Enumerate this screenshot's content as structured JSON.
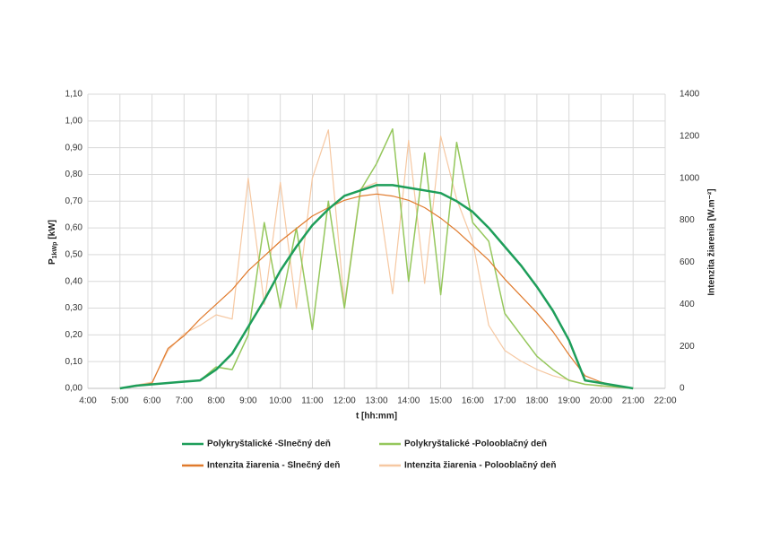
{
  "chart_data": {
    "type": "line",
    "xlabel": "t [hh:mm]",
    "ylabel_main": "P",
    "ylabel_sub": "1kWp",
    "ylabel_unit": "[kW]",
    "y2label": "Intenzita žiarenia [W.m⁻²]",
    "grid": true,
    "xlim": [
      4,
      22
    ],
    "xticks": [
      {
        "value": 4,
        "label": "4:00"
      },
      {
        "value": 5,
        "label": "5:00"
      },
      {
        "value": 6,
        "label": "6:00"
      },
      {
        "value": 7,
        "label": "7:00"
      },
      {
        "value": 8,
        "label": "8:00"
      },
      {
        "value": 9,
        "label": "9:00"
      },
      {
        "value": 10,
        "label": "10:00"
      },
      {
        "value": 11,
        "label": "11:00"
      },
      {
        "value": 12,
        "label": "12:00"
      },
      {
        "value": 13,
        "label": "13:00"
      },
      {
        "value": 14,
        "label": "14:00"
      },
      {
        "value": 15,
        "label": "15:00"
      },
      {
        "value": 16,
        "label": "16:00"
      },
      {
        "value": 17,
        "label": "17:00"
      },
      {
        "value": 18,
        "label": "18:00"
      },
      {
        "value": 19,
        "label": "19:00"
      },
      {
        "value": 20,
        "label": "20:00"
      },
      {
        "value": 21,
        "label": "21:00"
      },
      {
        "value": 22,
        "label": "22:00"
      }
    ],
    "ylim": [
      0,
      1.1
    ],
    "yticks": [
      {
        "value": 0,
        "label": "0,00"
      },
      {
        "value": 0.1,
        "label": "0,10"
      },
      {
        "value": 0.2,
        "label": "0,20"
      },
      {
        "value": 0.3,
        "label": "0,30"
      },
      {
        "value": 0.4,
        "label": "0,40"
      },
      {
        "value": 0.5,
        "label": "0,50"
      },
      {
        "value": 0.6,
        "label": "0,60"
      },
      {
        "value": 0.7,
        "label": "0,70"
      },
      {
        "value": 0.8,
        "label": "0,80"
      },
      {
        "value": 0.9,
        "label": "0,90"
      },
      {
        "value": 1.0,
        "label": "1,00"
      },
      {
        "value": 1.1,
        "label": "1,10"
      }
    ],
    "y2lim": [
      0,
      1400
    ],
    "y2ticks": [
      0,
      200,
      400,
      600,
      800,
      1000,
      1200,
      1400
    ],
    "x": [
      4,
      4.5,
      5,
      5.5,
      6,
      6.5,
      7,
      7.5,
      8,
      8.5,
      9,
      9.5,
      10,
      10.5,
      11,
      11.5,
      12,
      12.5,
      13,
      13.5,
      14,
      14.5,
      15,
      15.5,
      16,
      16.5,
      17,
      17.5,
      18,
      18.5,
      19,
      19.5,
      20,
      20.5,
      21,
      21.5,
      22
    ],
    "series": [
      {
        "name": "Polykryštalické -Slnečný deň",
        "color": "#1e9e5a",
        "width": 2.5,
        "values": [
          null,
          null,
          0,
          0.01,
          0.015,
          0.02,
          0.025,
          0.03,
          0.07,
          0.13,
          0.23,
          0.33,
          0.44,
          0.53,
          0.61,
          0.67,
          0.72,
          0.74,
          0.76,
          0.76,
          0.75,
          0.74,
          0.73,
          0.7,
          0.66,
          0.6,
          0.53,
          0.46,
          0.38,
          0.29,
          0.18,
          0.03,
          0.02,
          0.01,
          0,
          null,
          null
        ]
      },
      {
        "name": "Polykryštalické -Polooblačný deň",
        "color": "#95c75c",
        "width": 1.5,
        "values": [
          null,
          null,
          0,
          0.01,
          0.015,
          0.02,
          0.025,
          0.03,
          0.08,
          0.07,
          0.2,
          0.62,
          0.3,
          0.6,
          0.22,
          0.7,
          0.3,
          0.74,
          0.84,
          0.97,
          0.4,
          0.88,
          0.35,
          0.92,
          0.62,
          0.55,
          0.28,
          0.2,
          0.12,
          0.07,
          0.03,
          0.015,
          0.01,
          0.005,
          0,
          null,
          null
        ]
      },
      {
        "name": "Intenzita žiarenia - Slnečný deň",
        "color": "#e07a2c",
        "width": 1.2,
        "axis": "y2",
        "values": [
          null,
          null,
          0,
          10,
          25,
          190,
          250,
          330,
          400,
          470,
          560,
          630,
          700,
          760,
          820,
          860,
          895,
          915,
          925,
          915,
          895,
          860,
          810,
          750,
          680,
          610,
          520,
          440,
          360,
          270,
          160,
          60,
          30,
          10,
          0,
          null,
          null
        ]
      },
      {
        "name": "Intenzita žiarenia - Polooblačný deň",
        "color": "#f6c8a2",
        "width": 1.2,
        "axis": "y2",
        "values": [
          null,
          null,
          0,
          15,
          30,
          180,
          260,
          300,
          350,
          330,
          1000,
          400,
          980,
          380,
          1000,
          1230,
          400,
          950,
          980,
          450,
          1180,
          500,
          1200,
          900,
          700,
          300,
          180,
          130,
          90,
          60,
          40,
          20,
          10,
          5,
          0,
          null,
          null
        ]
      }
    ]
  }
}
